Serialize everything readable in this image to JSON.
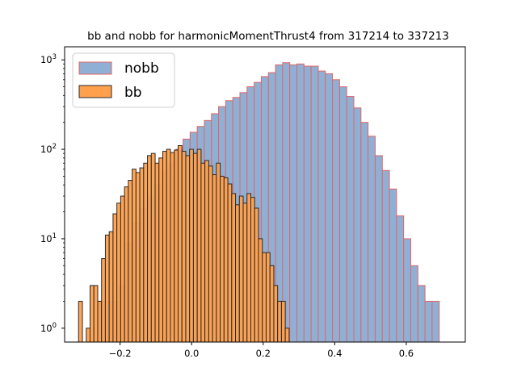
{
  "chart_data": {
    "type": "bar",
    "title": "bb and nobb for harmonicMomentThrust4 from 317214 to 337213",
    "xlabel": "",
    "ylabel": "",
    "xlim": [
      -0.355,
      0.765
    ],
    "ylim": [
      0.7,
      1400
    ],
    "yscale": "log",
    "grid": false,
    "legend_position": "top-left",
    "x_ticks": [
      {
        "value": -0.2,
        "label": "−0.2"
      },
      {
        "value": 0.0,
        "label": "0.0"
      },
      {
        "value": 0.2,
        "label": "0.2"
      },
      {
        "value": 0.4,
        "label": "0.4"
      },
      {
        "value": 0.6,
        "label": "0.6"
      }
    ],
    "y_ticks": [
      {
        "value": 1,
        "label": "10",
        "exp": "0"
      },
      {
        "value": 10,
        "label": "10",
        "exp": "1"
      },
      {
        "value": 100,
        "label": "10",
        "exp": "2"
      },
      {
        "value": 1000,
        "label": "10",
        "exp": "3"
      }
    ],
    "series": [
      {
        "name": "nobb",
        "fill": "#8fb0d4",
        "edge": "#e06666",
        "bin_start": -0.263,
        "bin_width": 0.0199,
        "values": [
          2,
          2,
          2,
          3,
          9,
          15,
          22,
          30,
          40,
          57,
          70,
          100,
          130,
          155,
          180,
          210,
          250,
          300,
          350,
          380,
          430,
          500,
          560,
          650,
          720,
          880,
          930,
          880,
          900,
          850,
          850,
          750,
          700,
          600,
          500,
          390,
          290,
          200,
          140,
          85,
          58,
          36,
          18,
          10,
          5,
          3,
          2,
          2
        ]
      },
      {
        "name": "bb",
        "fill": "#ffa04d",
        "edge": "#2a2a2a",
        "bin_start": -0.316,
        "bin_width": 0.0107,
        "values": [
          2,
          0,
          1,
          3,
          3,
          2,
          6,
          11,
          12,
          19,
          25,
          30,
          38,
          45,
          60,
          55,
          62,
          70,
          85,
          90,
          70,
          80,
          95,
          100,
          92,
          98,
          110,
          95,
          85,
          100,
          90,
          100,
          70,
          75,
          65,
          52,
          70,
          50,
          48,
          41,
          32,
          24,
          30,
          25,
          32,
          29,
          22,
          10,
          7,
          7,
          5,
          3,
          2,
          2,
          1
        ]
      }
    ]
  }
}
